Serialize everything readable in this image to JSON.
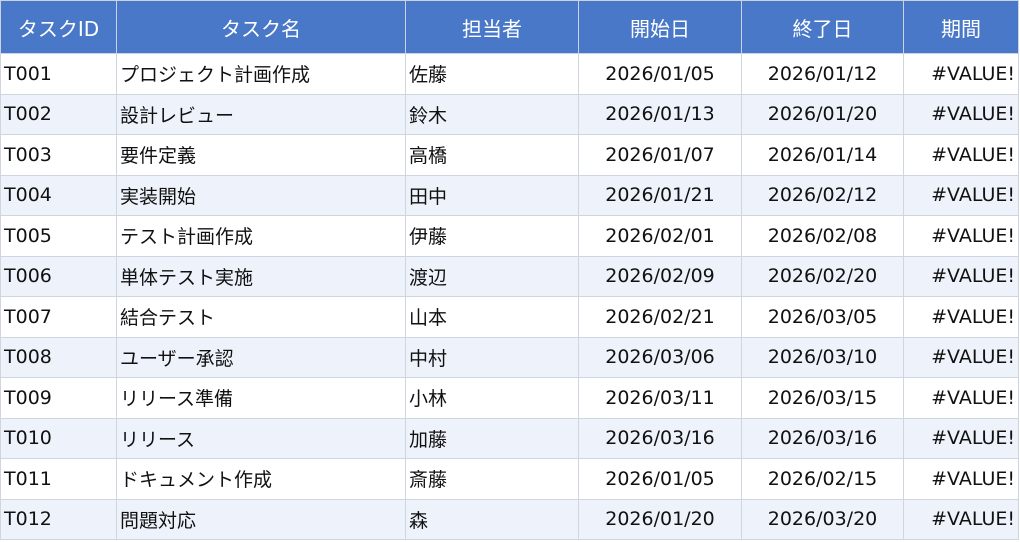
{
  "table": {
    "headers": [
      "タスクID",
      "タスク名",
      "担当者",
      "開始日",
      "終了日",
      "期間"
    ],
    "rows": [
      [
        "T001",
        "プロジェクト計画作成",
        "佐藤",
        "2026/01/05",
        "2026/01/12",
        "#VALUE!"
      ],
      [
        "T002",
        "設計レビュー",
        "鈴木",
        "2026/01/13",
        "2026/01/20",
        "#VALUE!"
      ],
      [
        "T003",
        "要件定義",
        "高橋",
        "2026/01/07",
        "2026/01/14",
        "#VALUE!"
      ],
      [
        "T004",
        "実装開始",
        "田中",
        "2026/01/21",
        "2026/02/12",
        "#VALUE!"
      ],
      [
        "T005",
        "テスト計画作成",
        "伊藤",
        "2026/02/01",
        "2026/02/08",
        "#VALUE!"
      ],
      [
        "T006",
        "単体テスト実施",
        "渡辺",
        "2026/02/09",
        "2026/02/20",
        "#VALUE!"
      ],
      [
        "T007",
        "結合テスト",
        "山本",
        "2026/02/21",
        "2026/03/05",
        "#VALUE!"
      ],
      [
        "T008",
        "ユーザー承認",
        "中村",
        "2026/03/06",
        "2026/03/10",
        "#VALUE!"
      ],
      [
        "T009",
        "リリース準備",
        "小林",
        "2026/03/11",
        "2026/03/15",
        "#VALUE!"
      ],
      [
        "T010",
        "リリース",
        "加藤",
        "2026/03/16",
        "2026/03/16",
        "#VALUE!"
      ],
      [
        "T011",
        "ドキュメント作成",
        "斎藤",
        "2026/01/05",
        "2026/02/15",
        "#VALUE!"
      ],
      [
        "T012",
        "問題対応",
        "森",
        "2026/01/20",
        "2026/03/20",
        "#VALUE!"
      ]
    ]
  }
}
